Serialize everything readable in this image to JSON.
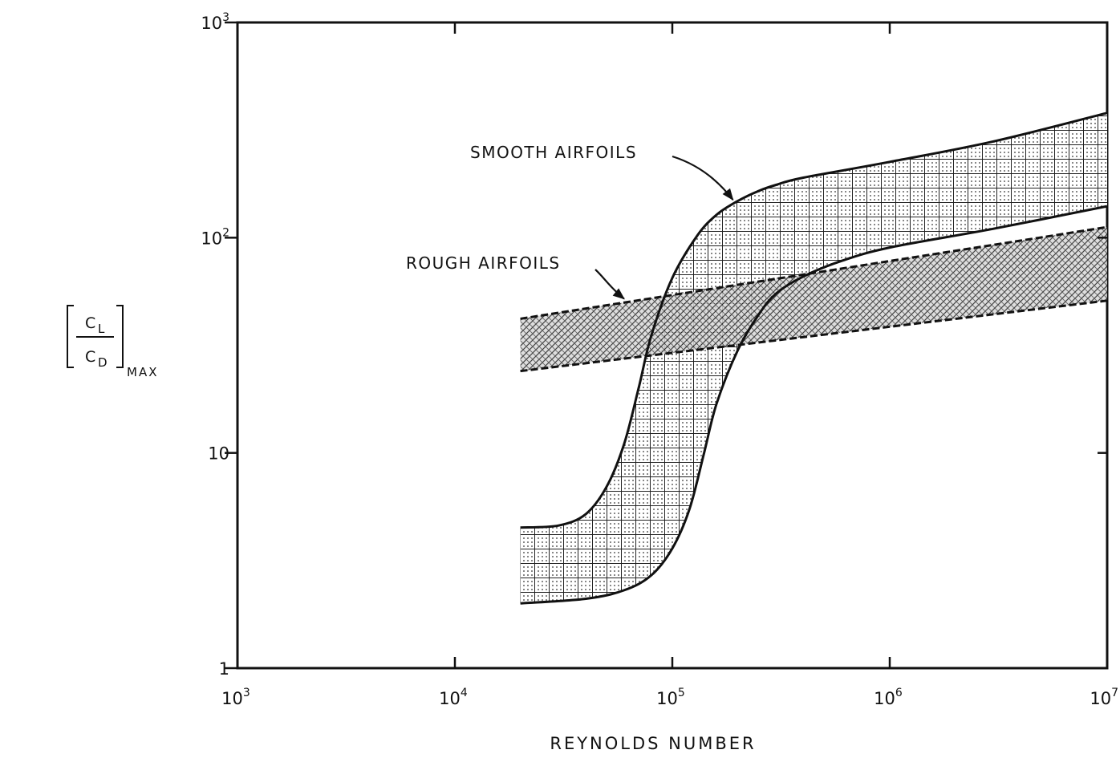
{
  "chart_data": {
    "type": "area",
    "title": "",
    "xlabel": "REYNOLDS NUMBER",
    "ylabel": {
      "numerator": "C",
      "numerator_sub": "L",
      "denominator": "C",
      "denominator_sub": "D",
      "subscript": "MAX"
    },
    "x_scale": "log",
    "y_scale": "log",
    "xlim": [
      1000,
      10000000
    ],
    "ylim": [
      1,
      1000
    ],
    "x_ticks": [
      {
        "base": "10",
        "exp": "3",
        "value": 1000
      },
      {
        "base": "10",
        "exp": "4",
        "value": 10000
      },
      {
        "base": "10",
        "exp": "5",
        "value": 100000
      },
      {
        "base": "10",
        "exp": "6",
        "value": 1000000
      },
      {
        "base": "10",
        "exp": "7",
        "value": 10000000
      }
    ],
    "y_ticks": [
      {
        "base": "1",
        "exp": "",
        "value": 1
      },
      {
        "base": "10",
        "exp": "",
        "value": 10
      },
      {
        "base": "10",
        "exp": "2",
        "value": 100
      },
      {
        "base": "10",
        "exp": "3",
        "value": 1000
      }
    ],
    "grid": false,
    "series": [
      {
        "name": "SMOOTH AIRFOILS",
        "style": "dotted-grid-band",
        "upper": {
          "x": [
            20000,
            30000,
            40000,
            50000,
            60000,
            70000,
            80000,
            100000,
            130000,
            160000,
            200000,
            250000,
            300000,
            400000,
            1000000,
            3000000,
            10000000
          ],
          "y": [
            4.5,
            4.6,
            5.2,
            7,
            11,
            20,
            35,
            65,
            102,
            128,
            148,
            165,
            176,
            190,
            225,
            280,
            380
          ]
        },
        "lower": {
          "x": [
            20000,
            40000,
            60000,
            80000,
            100000,
            120000,
            140000,
            160000,
            200000,
            250000,
            300000,
            400000,
            600000,
            1000000,
            3000000,
            10000000
          ],
          "y": [
            2,
            2.1,
            2.3,
            2.7,
            3.6,
            5.5,
            10,
            17,
            30,
            44,
            55,
            66,
            78,
            90,
            110,
            140
          ]
        },
        "annotation_point": {
          "x": 190000,
          "y": 150
        }
      },
      {
        "name": "ROUGH AIRFOILS",
        "style": "crosshatch-band",
        "upper": {
          "x": [
            20000,
            10000000
          ],
          "y": [
            42,
            112
          ]
        },
        "lower": {
          "x": [
            20000,
            10000000
          ],
          "y": [
            24,
            51
          ]
        },
        "annotation_point": {
          "x": 60000,
          "y": 52
        }
      }
    ]
  }
}
